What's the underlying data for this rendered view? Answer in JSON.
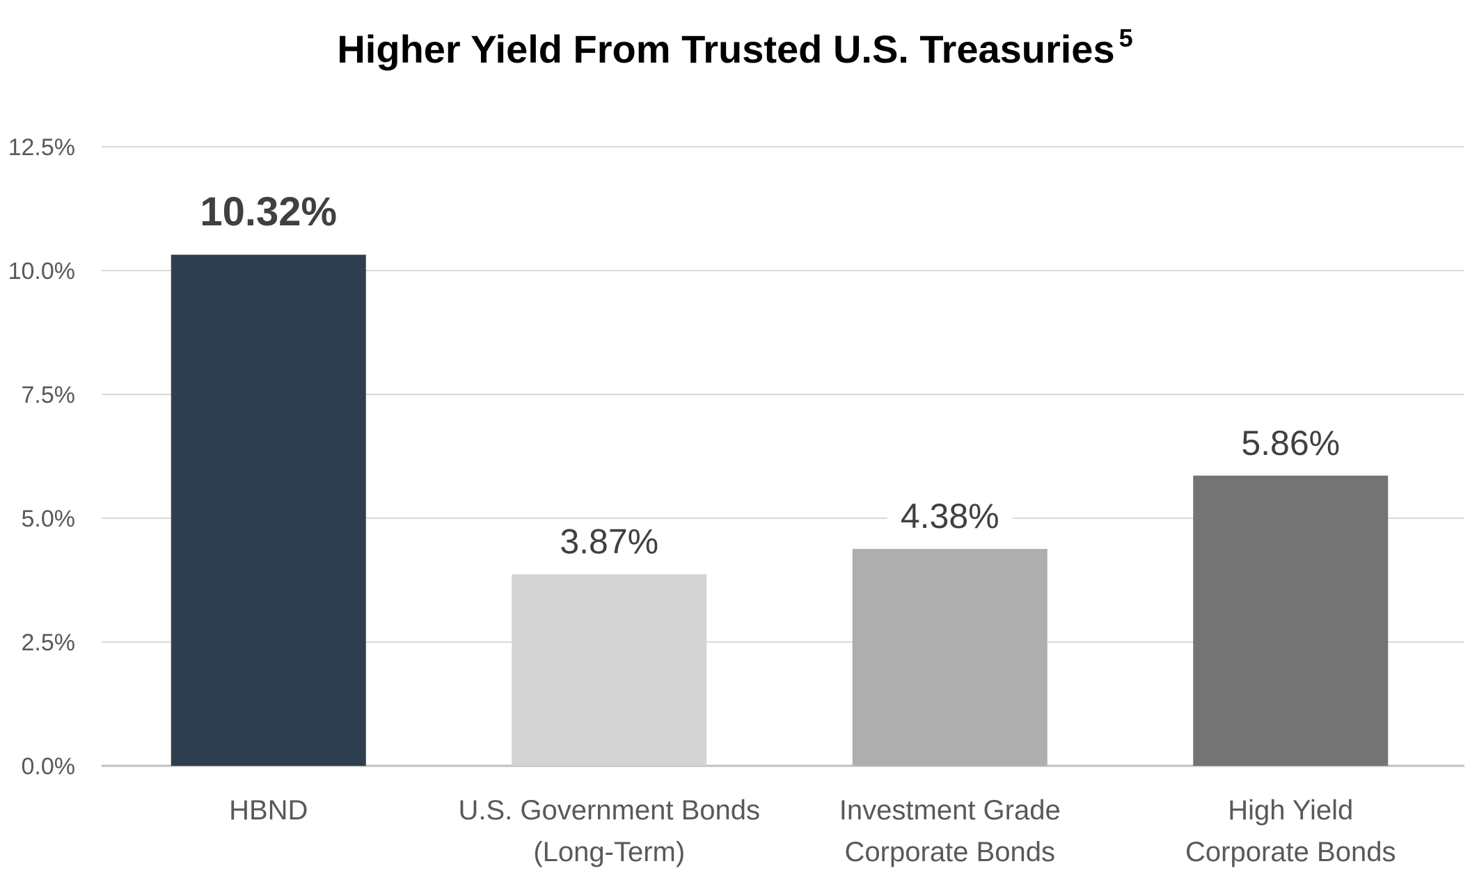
{
  "chart_data": {
    "type": "bar",
    "title": "Higher Yield From Trusted U.S. Treasuries",
    "title_superscript": "5",
    "categories": [
      [
        "HBND"
      ],
      [
        "U.S. Government Bonds",
        "(Long-Term)"
      ],
      [
        "Investment Grade",
        "Corporate Bonds"
      ],
      [
        "High Yield",
        "Corporate Bonds"
      ]
    ],
    "values": [
      10.32,
      3.87,
      4.38,
      5.86
    ],
    "value_labels": [
      "10.32%",
      "3.87%",
      "4.38%",
      "5.86%"
    ],
    "bar_colors": [
      "#2f3e4f",
      "#d4d4d4",
      "#aeaeae",
      "#747474"
    ],
    "highlight_first": true,
    "ylim": [
      0,
      12.5
    ],
    "yticks": [
      "0.0%",
      "2.5%",
      "5.0%",
      "7.5%",
      "10.0%",
      "12.5%"
    ],
    "grid": true,
    "xlabel": "",
    "ylabel": ""
  }
}
